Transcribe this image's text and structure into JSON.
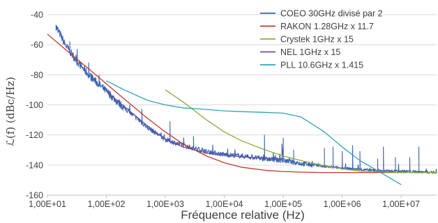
{
  "chart_data": {
    "type": "line",
    "title": "",
    "xlabel": "Fréquence relative (Hz)",
    "ylabel": "ℒ(f) (dBc/Hz)",
    "x_scale": "log",
    "xlim": [
      10,
      40000000
    ],
    "ylim": [
      -160,
      -40
    ],
    "x_ticks": [
      10,
      100,
      1000,
      10000,
      100000,
      1000000,
      10000000
    ],
    "x_tick_labels": [
      "1,00E+01",
      "1,00E+02",
      "1,00E+03",
      "1,00E+04",
      "1,00E+05",
      "1,00E+06",
      "1,00E+07"
    ],
    "y_ticks": [
      -160,
      -140,
      -120,
      -100,
      -80,
      -60,
      -40
    ],
    "y_tick_labels": [
      "-160",
      "-140",
      "-120",
      "-100",
      "-80",
      "-60",
      "-40"
    ],
    "grid": "horizontal",
    "legend_position": "top-right",
    "series": [
      {
        "name": "COEO 30GHz divisé par 2",
        "color": "#3a62b0",
        "x": [
          14,
          15,
          20,
          30,
          50,
          100,
          200,
          500,
          1000,
          2000,
          5000,
          10000,
          20000,
          50000,
          100000,
          200000,
          500000,
          1000000,
          2000000,
          5000000,
          10000000,
          20000000,
          40000000
        ],
        "y": [
          -48,
          -50,
          -60,
          -70,
          -80,
          -91,
          -102,
          -115,
          -123,
          -127,
          -131,
          -133,
          -134,
          -136,
          -137,
          -139,
          -141,
          -142,
          -143,
          -144,
          -144,
          -144.5,
          -145
        ]
      },
      {
        "name": "RAKON 1.28GHz x 11.7",
        "color": "#c0392b",
        "x": [
          10,
          20,
          50,
          100,
          200,
          500,
          1000,
          2000,
          5000,
          10000,
          20000,
          50000,
          100000,
          200000,
          500000,
          1000000,
          10000000,
          40000000
        ],
        "y": [
          -53,
          -63,
          -76,
          -86,
          -96,
          -109,
          -118,
          -126,
          -134,
          -138.5,
          -141.5,
          -143.5,
          -144.3,
          -144.7,
          -145,
          -145,
          -145,
          -145
        ]
      },
      {
        "name": "Crystek 1GHz x 15",
        "color": "#8aac3c",
        "x": [
          1000,
          2000,
          5000,
          10000,
          20000,
          50000,
          100000,
          200000,
          500000,
          1000000,
          2000000,
          10000000,
          40000000
        ],
        "y": [
          -90,
          -98,
          -110,
          -118,
          -124,
          -130,
          -134,
          -137,
          -140.5,
          -142.5,
          -144,
          -145,
          -145
        ]
      },
      {
        "name": "NEL 1GHz x 15",
        "color": "#6a4fa0",
        "x": [
          100,
          200,
          500,
          1000,
          2000,
          5000,
          10000,
          20000,
          50000,
          100000
        ],
        "y": [
          -91,
          -101,
          -114,
          -123,
          -128,
          -132,
          -133.5,
          -134.5,
          -135.5,
          -136
        ]
      },
      {
        "name": "PLL 10.6GHz x 1.415",
        "color": "#2ea3bd",
        "x": [
          100,
          200,
          500,
          1000,
          2000,
          5000,
          10000,
          20000,
          50000,
          100000,
          200000,
          500000,
          1000000,
          2000000,
          5000000,
          10000000
        ],
        "y": [
          -84,
          -90,
          -97,
          -100,
          -102,
          -103,
          -104,
          -104.5,
          -105,
          -105.5,
          -108,
          -118,
          -128,
          -137,
          -146,
          -153
        ]
      }
    ]
  }
}
